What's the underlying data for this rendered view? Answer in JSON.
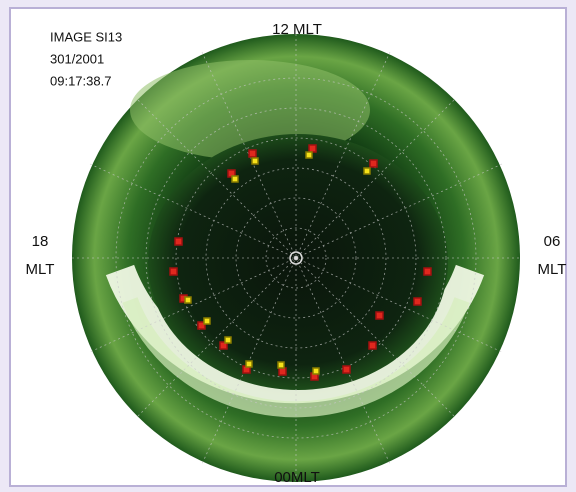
{
  "header": {
    "lines": [
      "IMAGE SI13",
      "301/2001",
      "09:17:38.7"
    ]
  },
  "labels": {
    "top": "12 MLT",
    "left": [
      "18",
      "MLT"
    ],
    "right": [
      "06",
      "MLT"
    ],
    "bottom": "00MLT"
  }
}
